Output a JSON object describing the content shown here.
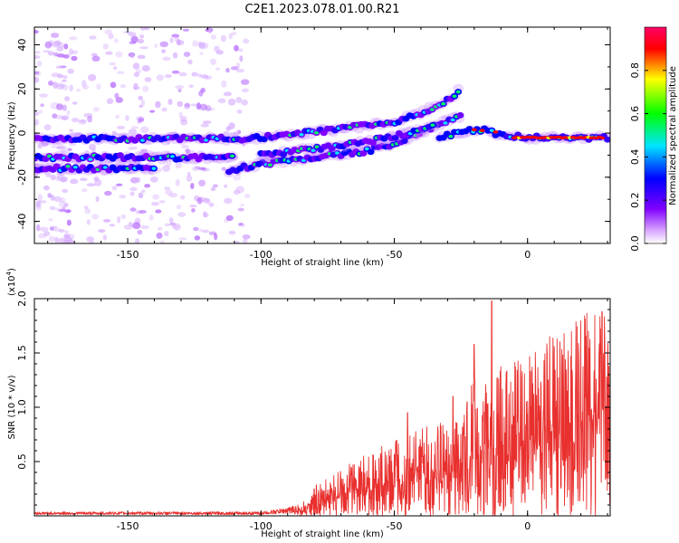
{
  "title": "C2E1.2023.078.01.00.R21",
  "chart_data": [
    {
      "type": "heatmap",
      "xlabel": "Height of straight line (km)",
      "ylabel": "Frequency (Hz)",
      "xlim": [
        -185,
        31
      ],
      "ylim": [
        -50,
        48
      ],
      "x_ticks": [
        -150,
        -100,
        -50,
        0
      ],
      "y_ticks": [
        -40,
        -20,
        0,
        20,
        40
      ],
      "colorbar": {
        "label": "Normalized spectral amplitude",
        "range": [
          0.0,
          1.0
        ],
        "ticks": [
          0.0,
          0.2,
          0.4,
          0.6,
          0.8
        ],
        "colors": [
          "#ffffff",
          "#d9a6ff",
          "#8000ff",
          "#0000ff",
          "#00e5ff",
          "#00ff00",
          "#ffff00",
          "#ff0000",
          "#ff0066"
        ]
      },
      "tracks": [
        {
          "x": [
            -185,
            -160,
            -140,
            -120,
            -110
          ],
          "y": [
            -2.5,
            -2.5,
            -2.5,
            -2.5,
            -2.5
          ]
        },
        {
          "x": [
            -185,
            -160,
            -140,
            -120,
            -110
          ],
          "y": [
            -11,
            -11,
            -11,
            -11,
            -11
          ]
        },
        {
          "x": [
            -185,
            -160,
            -140
          ],
          "y": [
            -16,
            -16,
            -16
          ]
        },
        {
          "x": [
            -112,
            -100,
            -80,
            -60,
            -50,
            -35,
            -25
          ],
          "y": [
            -17,
            -14,
            -11,
            -8,
            -5,
            3,
            8
          ]
        },
        {
          "x": [
            -110,
            -90,
            -70,
            -50,
            -40,
            -30,
            -25
          ],
          "y": [
            -3,
            -1,
            2,
            5,
            9,
            15,
            20
          ]
        },
        {
          "x": [
            -100,
            -80,
            -60,
            -45,
            -35
          ],
          "y": [
            -10,
            -7,
            -4,
            0,
            3
          ]
        },
        {
          "x": [
            -33,
            -25,
            -20,
            -15,
            -10,
            0,
            10,
            20,
            31
          ],
          "y": [
            -2,
            0.5,
            1.5,
            1,
            -1,
            -2,
            -2,
            -2,
            -2
          ]
        }
      ]
    },
    {
      "type": "line",
      "xlabel": "Height of straight line (km)",
      "ylabel": "SNR (10 * v/v)",
      "y_multiplier": "(x10",
      "y_multiplier_exp": "4",
      "y_multiplier_close": ")",
      "xlim": [
        -185,
        31
      ],
      "ylim": [
        0,
        2.0
      ],
      "x_ticks": [
        -150,
        -100,
        -50,
        0
      ],
      "y_ticks": [
        0.5,
        1.0,
        1.5,
        2.0
      ],
      "y_tick_labels": [
        "0.5",
        "1.0",
        "1.5",
        "2.0"
      ],
      "series": [
        {
          "color": "#e8302e",
          "envelope_x": [
            -185,
            -100,
            -90,
            -85,
            -80,
            -70,
            -60,
            -50,
            -40,
            -30,
            -25,
            -20,
            -15,
            -10,
            -5,
            0,
            10,
            20,
            31
          ],
          "envelope_y": [
            0.03,
            0.03,
            0.06,
            0.1,
            0.25,
            0.38,
            0.5,
            0.62,
            0.72,
            0.78,
            0.9,
            1.15,
            1.05,
            1.2,
            1.25,
            1.3,
            1.5,
            1.65,
            1.8
          ],
          "peaks": [
            {
              "x": -20,
              "y": 1.58
            },
            {
              "x": -13.5,
              "y": 1.98
            },
            {
              "x": -45,
              "y": 0.95
            },
            {
              "x": -28,
              "y": 1.1
            },
            {
              "x": 28,
              "y": 1.88
            }
          ]
        }
      ]
    }
  ]
}
